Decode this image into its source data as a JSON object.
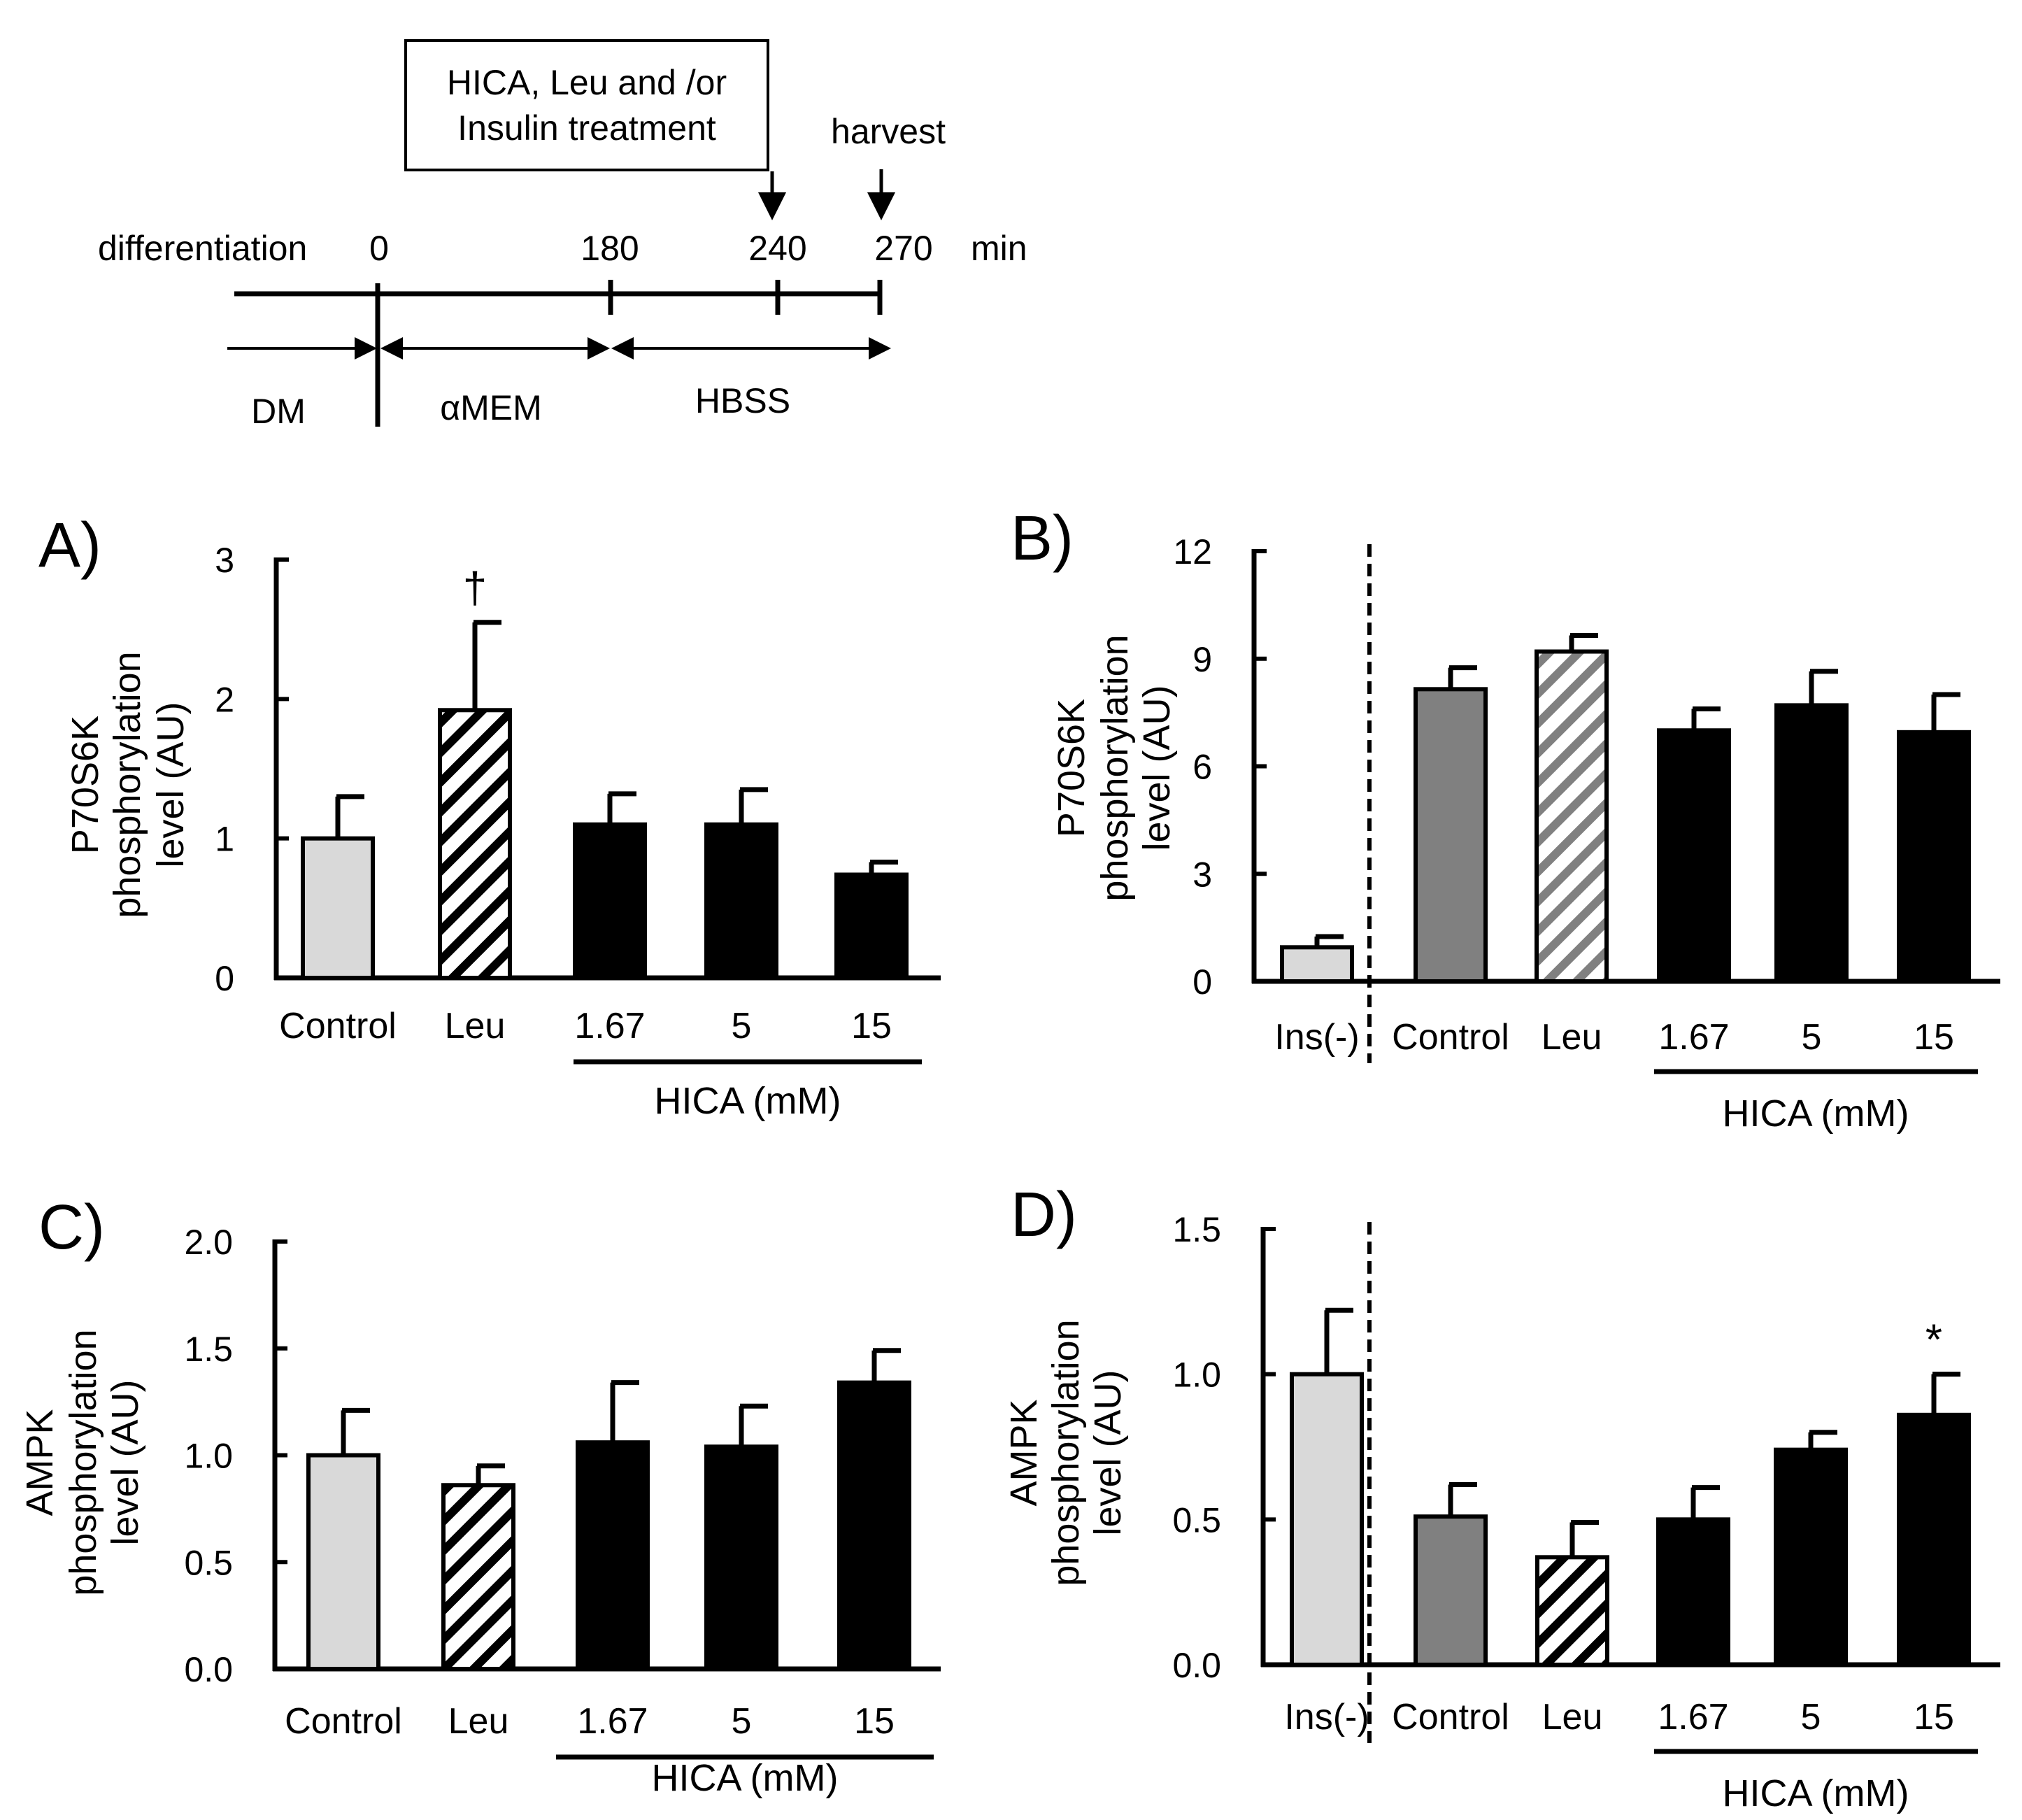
{
  "timeline": {
    "treatment_box": {
      "line1": "HICA, Leu and /or",
      "line2": "Insulin treatment"
    },
    "harvest_label": "harvest",
    "start_label": "differentiation",
    "ticks": [
      "0",
      "180",
      "240",
      "270"
    ],
    "unit": "min",
    "phases": [
      "DM",
      "αMEM",
      "HBSS"
    ]
  },
  "colors": {
    "control_light": "#d9d9d9",
    "control_dark": "#808080",
    "hica": "#000000",
    "axis": "#000000"
  },
  "chart_data": [
    {
      "panel": "A)",
      "type": "bar",
      "ylabel": [
        "P70S6K",
        "phosphorylation",
        "level (AU)"
      ],
      "ylim": [
        0,
        3
      ],
      "yticks": [
        "0",
        "1",
        "2",
        "3"
      ],
      "categories": [
        "Control",
        "Leu",
        "1.67",
        "5",
        "15"
      ],
      "values": [
        1.0,
        1.92,
        1.1,
        1.1,
        0.74
      ],
      "errors": [
        0.3,
        0.63,
        0.22,
        0.25,
        0.09
      ],
      "fills": [
        "light",
        "hatch",
        "black",
        "black",
        "black"
      ],
      "group_label": "HICA (mM)",
      "annotations": [
        {
          "category": "Leu",
          "text": "†"
        }
      ]
    },
    {
      "panel": "B)",
      "type": "bar",
      "ylabel": [
        "P70S6K",
        "phosphorylation",
        "level (AU)"
      ],
      "ylim": [
        0,
        12
      ],
      "yticks": [
        "0",
        "3",
        "6",
        "9",
        "12"
      ],
      "categories": [
        "Ins(-)",
        "Control",
        "Leu",
        "1.67",
        "5",
        "15"
      ],
      "values": [
        0.95,
        8.15,
        9.2,
        7.0,
        7.7,
        6.95
      ],
      "errors": [
        0.3,
        0.6,
        0.45,
        0.6,
        0.95,
        1.05
      ],
      "fills": [
        "light",
        "gray",
        "hatch-gray",
        "black",
        "black",
        "black"
      ],
      "group_label": "HICA (mM)",
      "annotations": []
    },
    {
      "panel": "C)",
      "type": "bar",
      "ylabel": [
        "AMPK",
        "phosphorylation",
        "level (AU)"
      ],
      "ylim": [
        0,
        2
      ],
      "yticks": [
        "0.0",
        "0.5",
        "1.0",
        "1.5",
        "2.0"
      ],
      "categories": [
        "Control",
        "Leu",
        "1.67",
        "5",
        "15"
      ],
      "values": [
        1.0,
        0.86,
        1.06,
        1.04,
        1.34
      ],
      "errors": [
        0.21,
        0.09,
        0.28,
        0.19,
        0.15
      ],
      "fills": [
        "light",
        "hatch",
        "black",
        "black",
        "black"
      ],
      "group_label": "HICA (mM)",
      "annotations": []
    },
    {
      "panel": "D)",
      "type": "bar",
      "ylabel": [
        "AMPK",
        "phosphorylation",
        "level (AU)"
      ],
      "ylim": [
        0,
        1.5
      ],
      "yticks": [
        "0.0",
        "0.5",
        "1.0",
        "1.5"
      ],
      "categories": [
        "Ins(-)",
        "Control",
        "Leu",
        "1.67",
        "5",
        "15"
      ],
      "values": [
        1.0,
        0.51,
        0.37,
        0.5,
        0.74,
        0.86
      ],
      "errors": [
        0.22,
        0.11,
        0.12,
        0.11,
        0.06,
        0.14
      ],
      "fills": [
        "light",
        "gray",
        "hatch",
        "black",
        "black",
        "black"
      ],
      "group_label": "HICA (mM)",
      "annotations": [
        {
          "category": "15",
          "text": "*"
        }
      ]
    }
  ]
}
